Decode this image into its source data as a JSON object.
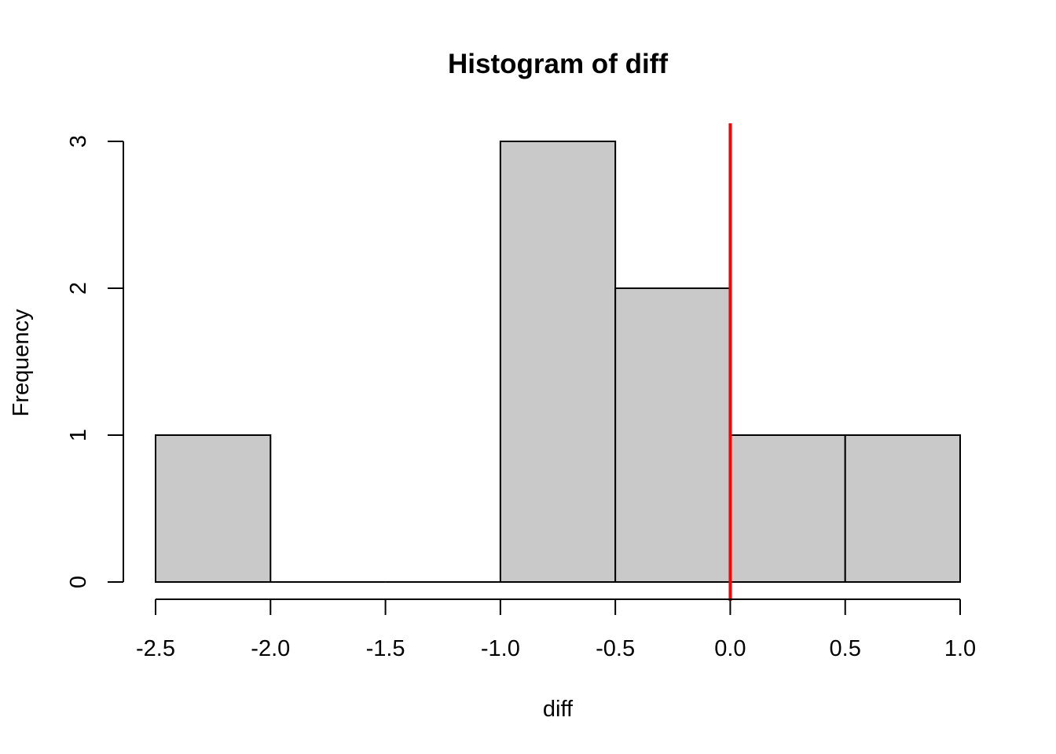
{
  "chart_data": {
    "type": "bar",
    "title": "Histogram of diff",
    "xlabel": "diff",
    "ylabel": "Frequency",
    "bins": [
      {
        "start": -2.5,
        "end": -2.0,
        "count": 1
      },
      {
        "start": -2.0,
        "end": -1.5,
        "count": 0
      },
      {
        "start": -1.5,
        "end": -1.0,
        "count": 0
      },
      {
        "start": -1.0,
        "end": -0.5,
        "count": 3
      },
      {
        "start": -0.5,
        "end": 0.0,
        "count": 2
      },
      {
        "start": 0.0,
        "end": 0.5,
        "count": 1
      },
      {
        "start": 0.5,
        "end": 1.0,
        "count": 1
      }
    ],
    "xlim": [
      -2.5,
      1.0
    ],
    "ylim": [
      0,
      3
    ],
    "x_ticks": [
      "-2.5",
      "-2.0",
      "-1.5",
      "-1.0",
      "-0.5",
      "0.0",
      "0.5",
      "1.0"
    ],
    "y_ticks": [
      "0",
      "1",
      "2",
      "3"
    ],
    "reference_line": {
      "x": 0.0,
      "color": "#ff0000"
    },
    "bar_color": "#c9c9c9",
    "grid": false
  }
}
